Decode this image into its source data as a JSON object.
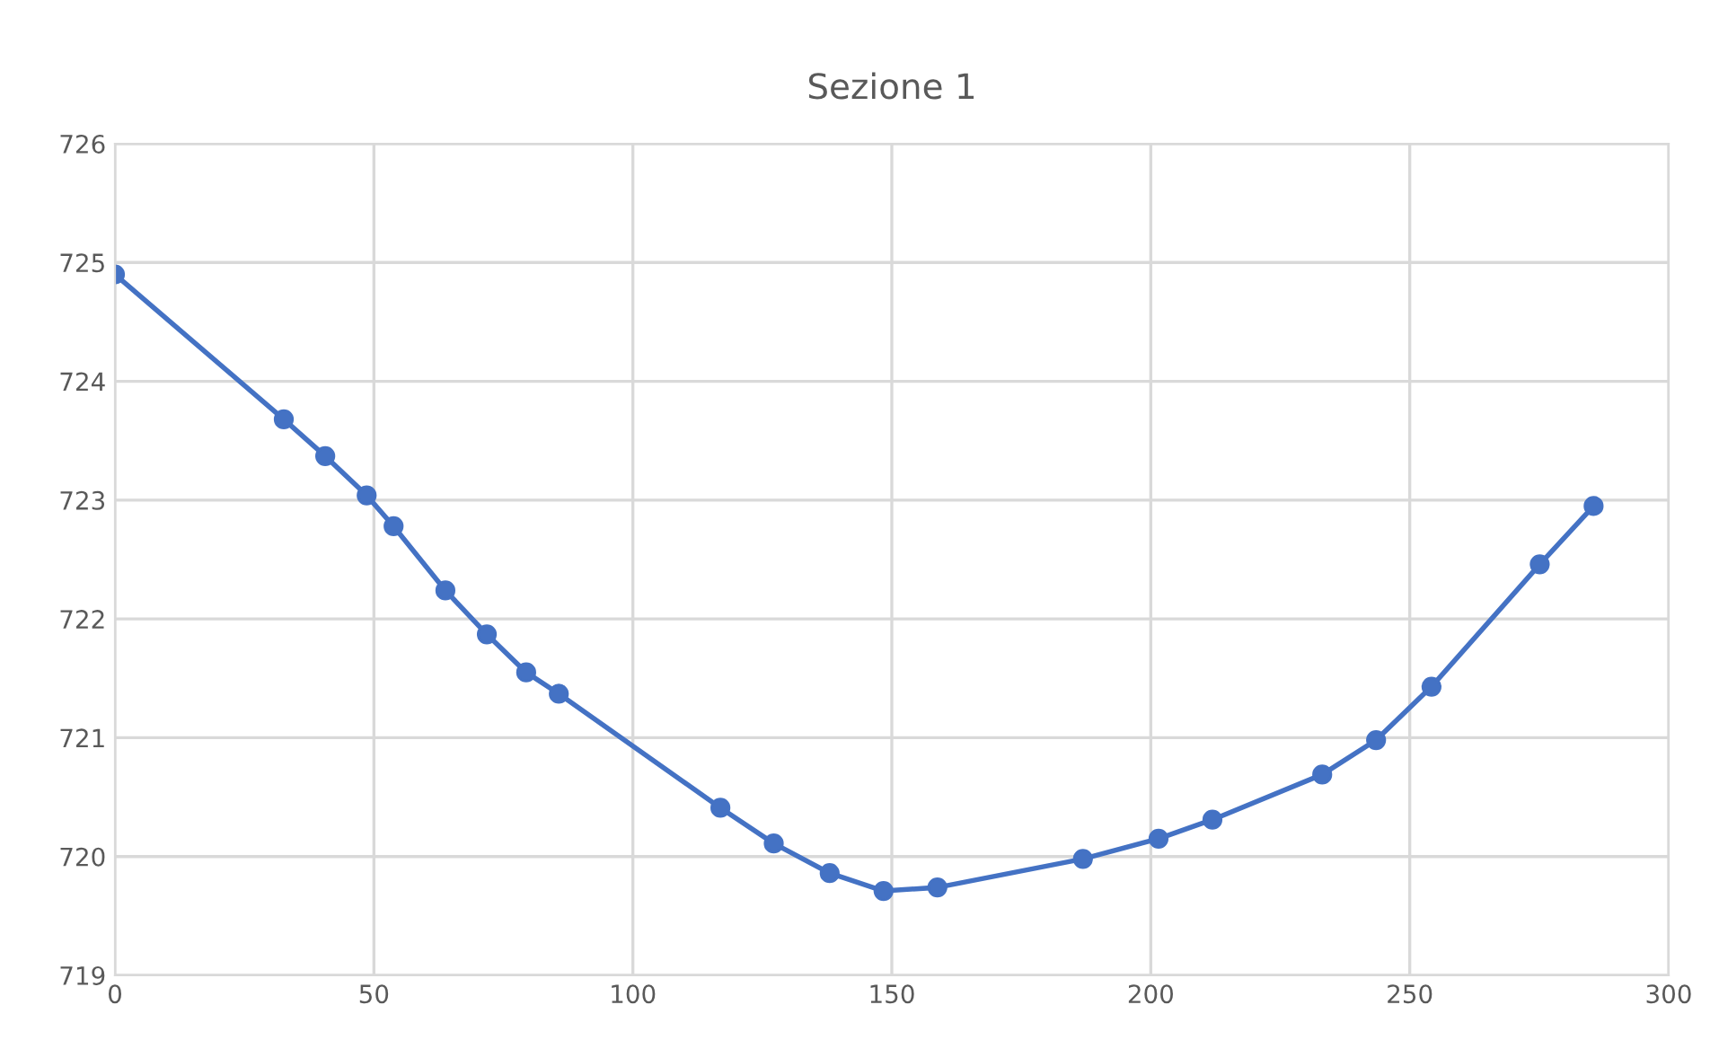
{
  "chart_data": {
    "type": "line",
    "title": "Sezione 1",
    "x": [
      0,
      32.6,
      40.6,
      48.6,
      53.8,
      63.8,
      71.8,
      79.4,
      85.7,
      116.9,
      127.2,
      138,
      148.4,
      158.8,
      186.9,
      201.5,
      211.9,
      233.1,
      243.5,
      254.2,
      275.1,
      285.5
    ],
    "series": [
      {
        "color": "#4472c4",
        "values": [
          724.9,
          723.68,
          723.37,
          723.04,
          722.78,
          722.24,
          721.87,
          721.55,
          721.37,
          720.41,
          720.11,
          719.86,
          719.71,
          719.74,
          719.98,
          720.15,
          720.31,
          720.69,
          720.98,
          721.43,
          722.46,
          722.95
        ]
      }
    ],
    "xlim": [
      0,
      300
    ],
    "xticks": [
      0,
      50,
      100,
      150,
      200,
      250,
      300
    ],
    "ylim": [
      719,
      726
    ],
    "yticks": [
      719,
      720,
      721,
      722,
      723,
      724,
      725,
      726
    ],
    "grid": true,
    "marker": "circle",
    "line_style": "solid",
    "legend": false
  }
}
